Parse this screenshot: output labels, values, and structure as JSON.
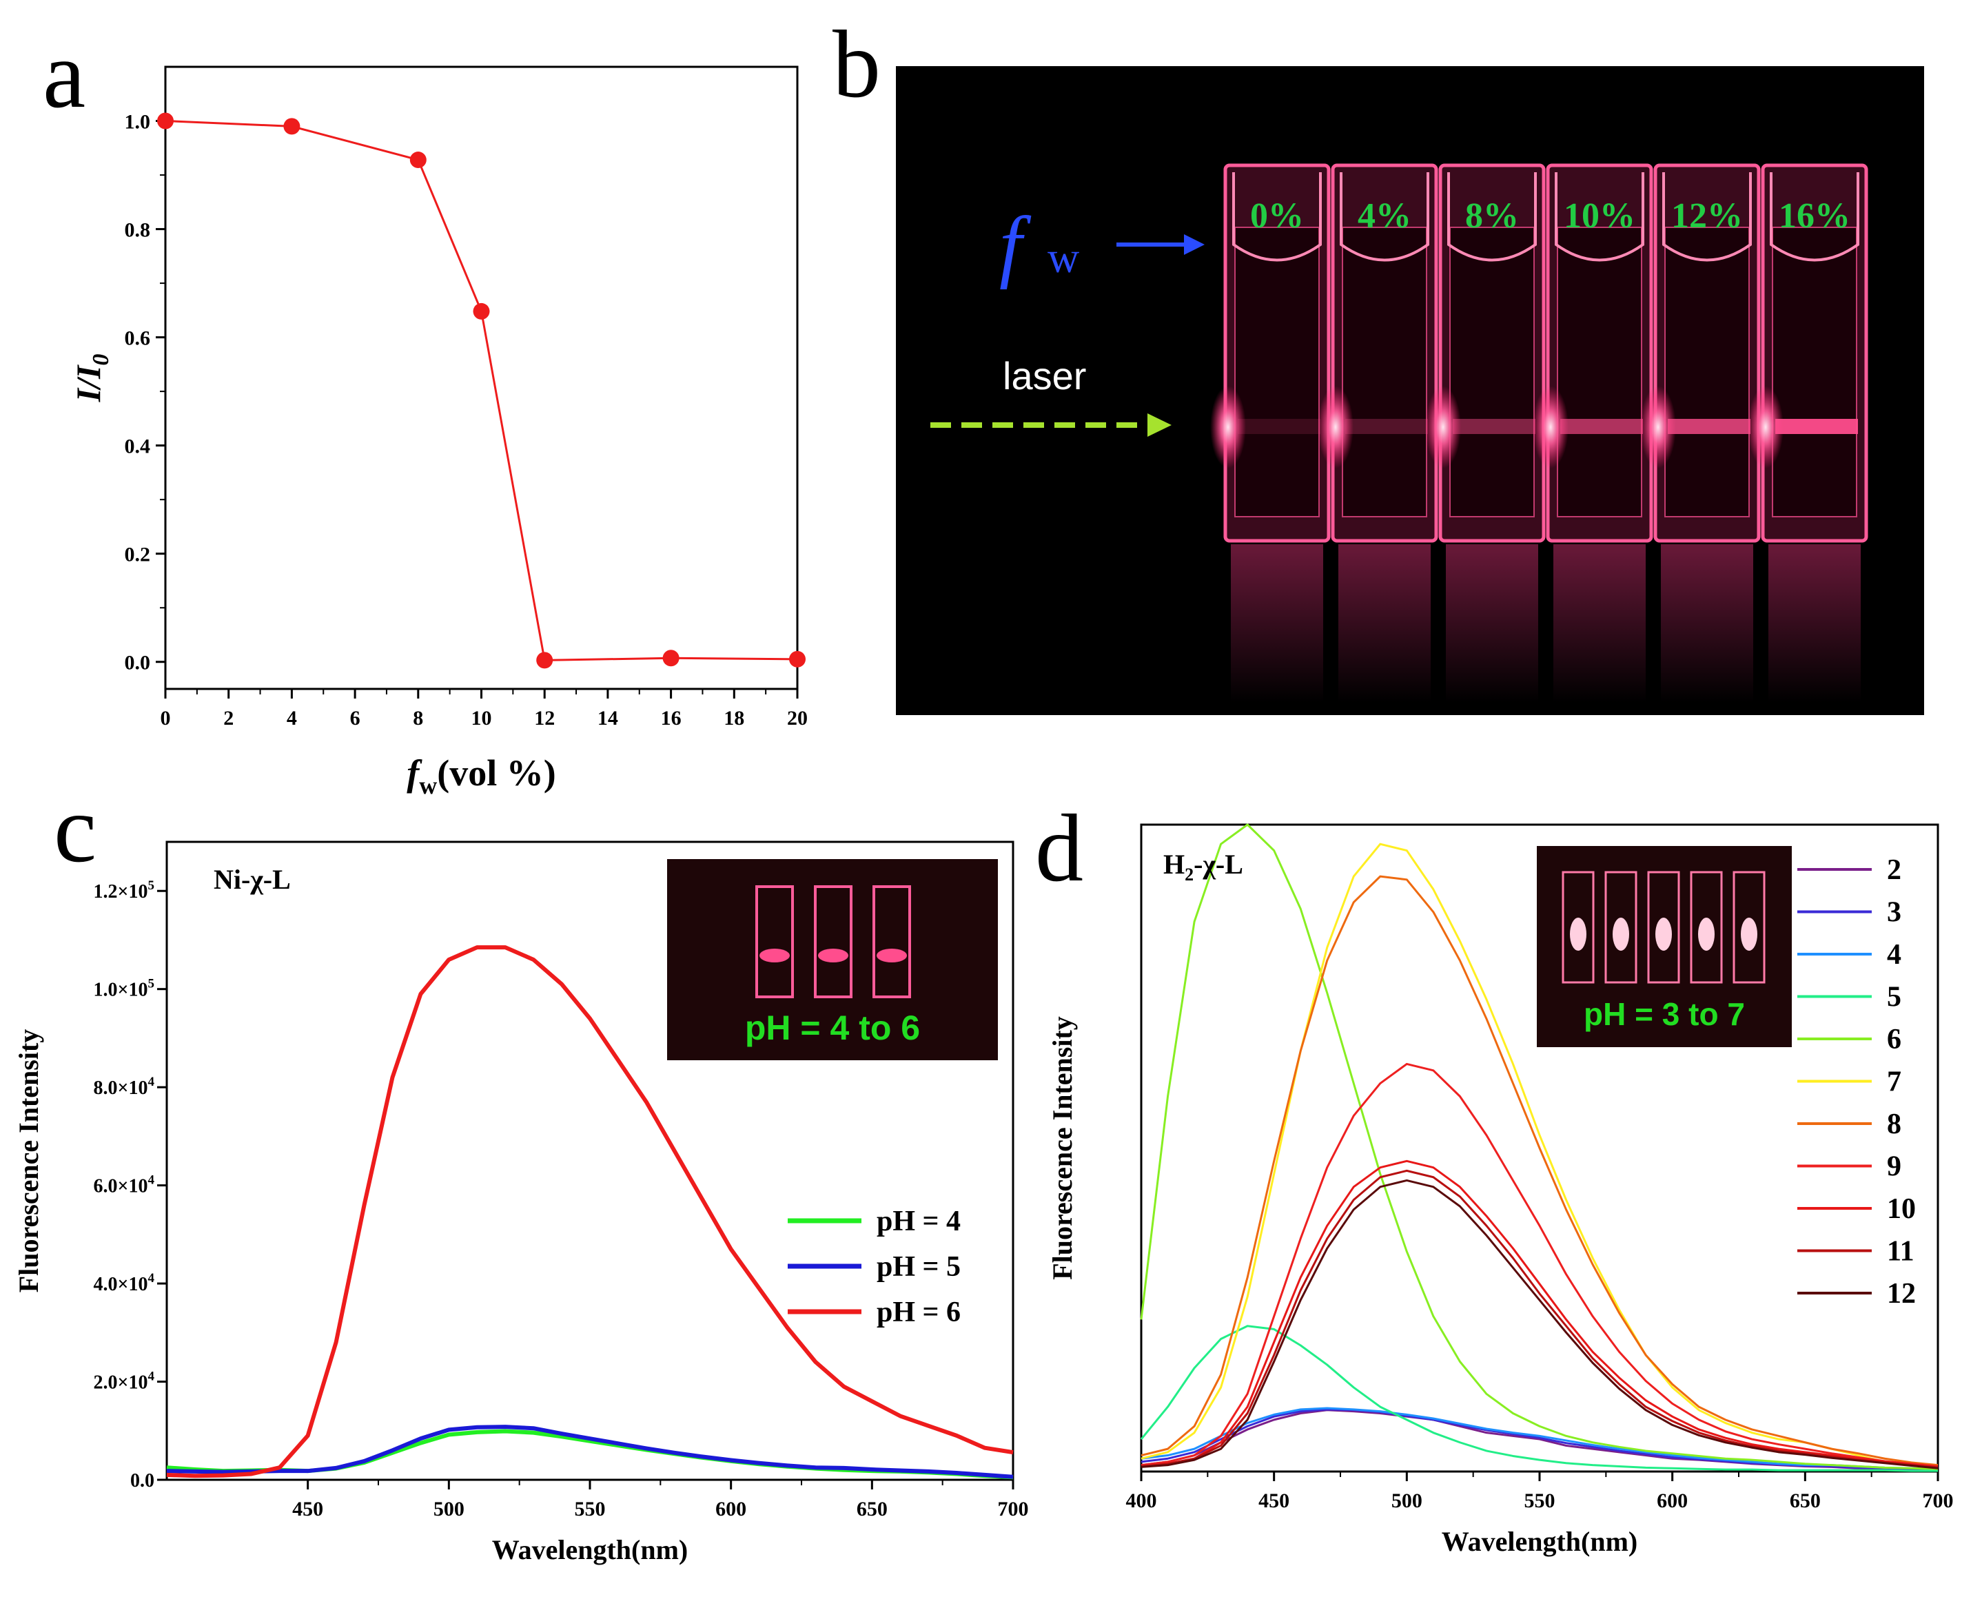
{
  "panels": {
    "a": "a",
    "b": "b",
    "c": "c",
    "d": "d"
  },
  "chart_data": [
    {
      "panel": "a",
      "type": "line",
      "xlabel_main": "f",
      "xlabel_sub": "w",
      "xlabel_rest": "(vol %)",
      "ylabel": "I/I",
      "ylabel_sub": "0",
      "xlim": [
        0,
        20
      ],
      "ylim": [
        -0.05,
        1.1
      ],
      "xticks": [
        0,
        2,
        4,
        6,
        8,
        10,
        12,
        14,
        16,
        18,
        20
      ],
      "yticks": [
        0.0,
        0.2,
        0.4,
        0.6,
        0.8,
        1.0
      ],
      "x": [
        0,
        4,
        8,
        10,
        12,
        16,
        20
      ],
      "y": [
        1.0,
        0.99,
        0.928,
        0.648,
        0.003,
        0.007,
        0.005
      ],
      "color": "#ee1c1c"
    },
    {
      "panel": "c",
      "type": "line",
      "sample_label": "Ni-χ-L",
      "xlabel": "Wavelength(nm)",
      "ylabel": "Fluorescence Intensity",
      "xlim": [
        400,
        700
      ],
      "ylim": [
        0,
        130000
      ],
      "xticks": [
        450,
        500,
        550,
        600,
        650,
        700
      ],
      "yticks": [
        0,
        20000,
        40000,
        60000,
        80000,
        100000,
        120000
      ],
      "ytick_labels": [
        {
          "m": "0.0",
          "e": ""
        },
        {
          "m": "2.0×10",
          "e": "4"
        },
        {
          "m": "4.0×10",
          "e": "4"
        },
        {
          "m": "6.0×10",
          "e": "4"
        },
        {
          "m": "8.0×10",
          "e": "4"
        },
        {
          "m": "1.0×10",
          "e": "5"
        },
        {
          "m": "1.2×10",
          "e": "5"
        }
      ],
      "x": [
        400,
        410,
        420,
        430,
        440,
        450,
        460,
        470,
        480,
        490,
        500,
        510,
        520,
        530,
        540,
        550,
        560,
        570,
        580,
        590,
        600,
        610,
        620,
        630,
        640,
        650,
        660,
        670,
        680,
        690,
        700
      ],
      "series": [
        {
          "name": "pH = 4",
          "color": "#22ee22",
          "values": [
            2500,
            2100,
            1800,
            1900,
            2000,
            1800,
            2300,
            3500,
            5500,
            7500,
            9200,
            9700,
            9900,
            9600,
            8800,
            7900,
            7000,
            6100,
            5300,
            4500,
            3800,
            3200,
            2700,
            2300,
            2000,
            1800,
            1700,
            1500,
            1200,
            800,
            500
          ]
        },
        {
          "name": "pH = 5",
          "color": "#1a1ad6",
          "values": [
            1800,
            1700,
            1600,
            1700,
            1800,
            1800,
            2400,
            3800,
            6000,
            8400,
            10200,
            10700,
            10800,
            10500,
            9400,
            8400,
            7400,
            6400,
            5500,
            4700,
            4000,
            3400,
            2900,
            2500,
            2400,
            2100,
            1900,
            1700,
            1400,
            1000,
            600
          ]
        },
        {
          "name": "pH = 6",
          "color": "#ee1c1c",
          "values": [
            1000,
            800,
            900,
            1200,
            2500,
            9000,
            28000,
            56000,
            82000,
            99000,
            106000,
            108500,
            108500,
            106000,
            101000,
            94000,
            85500,
            77000,
            67000,
            57000,
            47000,
            39000,
            31000,
            24000,
            19000,
            16000,
            13000,
            11000,
            9000,
            6500,
            5600
          ]
        }
      ],
      "inset_text": "pH = 4 to 6"
    },
    {
      "panel": "d",
      "type": "line",
      "sample_label": "H",
      "sample_sub": "2",
      "sample_rest": "-χ-L",
      "xlabel": "Wavelength(nm)",
      "ylabel": "Fluorescence Intensity",
      "xlim": [
        400,
        700
      ],
      "ylim": [
        0,
        1000
      ],
      "xticks": [
        400,
        450,
        500,
        550,
        600,
        650,
        700
      ],
      "x": [
        400,
        410,
        420,
        430,
        440,
        450,
        460,
        470,
        480,
        490,
        500,
        510,
        520,
        530,
        540,
        550,
        560,
        570,
        580,
        590,
        600,
        610,
        620,
        630,
        640,
        650,
        660,
        670,
        680,
        690,
        700
      ],
      "series": [
        {
          "name": "2",
          "color": "#7a1f8a",
          "values": [
            10,
            15,
            25,
            45,
            65,
            80,
            90,
            95,
            93,
            90,
            85,
            80,
            70,
            60,
            55,
            50,
            40,
            35,
            30,
            25,
            20,
            18,
            15,
            12,
            10,
            8,
            7,
            5,
            4,
            3,
            2
          ]
        },
        {
          "name": "3",
          "color": "#3a2ad6",
          "values": [
            15,
            20,
            30,
            50,
            70,
            85,
            93,
            96,
            95,
            92,
            86,
            80,
            72,
            64,
            58,
            52,
            44,
            38,
            32,
            27,
            22,
            19,
            16,
            13,
            11,
            9,
            8,
            6,
            5,
            4,
            3
          ]
        },
        {
          "name": "4",
          "color": "#1e90ff",
          "values": [
            20,
            25,
            35,
            55,
            75,
            88,
            96,
            98,
            96,
            93,
            88,
            82,
            74,
            66,
            60,
            55,
            48,
            41,
            35,
            30,
            25,
            21,
            18,
            15,
            12,
            10,
            10,
            8,
            6,
            5,
            4
          ]
        },
        {
          "name": "5",
          "color": "#22ee88",
          "values": [
            50,
            100,
            160,
            205,
            225,
            220,
            195,
            165,
            130,
            100,
            80,
            60,
            45,
            32,
            24,
            18,
            13,
            10,
            8,
            6,
            5,
            4,
            3,
            3,
            2,
            2,
            2,
            2,
            2,
            1,
            1
          ]
        },
        {
          "name": "6",
          "color": "#88ee22",
          "values": [
            235,
            580,
            850,
            970,
            1000,
            960,
            870,
            740,
            600,
            460,
            340,
            240,
            170,
            120,
            90,
            70,
            55,
            45,
            38,
            32,
            28,
            24,
            20,
            18,
            15,
            12,
            10,
            8,
            6,
            5,
            4
          ]
        },
        {
          "name": "7",
          "color": "#ffee22",
          "values": [
            20,
            30,
            60,
            130,
            270,
            460,
            650,
            810,
            920,
            970,
            960,
            900,
            820,
            730,
            630,
            520,
            420,
            330,
            250,
            180,
            130,
            95,
            75,
            60,
            50,
            45,
            35,
            25,
            15,
            10,
            5
          ]
        },
        {
          "name": "8",
          "color": "#ee6a10",
          "values": [
            25,
            35,
            70,
            150,
            300,
            480,
            650,
            790,
            880,
            920,
            915,
            865,
            790,
            700,
            600,
            500,
            405,
            320,
            245,
            180,
            135,
            100,
            80,
            65,
            55,
            45,
            35,
            28,
            20,
            14,
            10
          ]
        },
        {
          "name": "9",
          "color": "#ee2020",
          "values": [
            10,
            15,
            25,
            55,
            120,
            240,
            360,
            470,
            550,
            600,
            630,
            620,
            580,
            520,
            450,
            380,
            305,
            240,
            185,
            140,
            105,
            80,
            62,
            50,
            42,
            35,
            28,
            22,
            16,
            12,
            8
          ]
        },
        {
          "name": "10",
          "color": "#e81818",
          "values": [
            8,
            12,
            20,
            45,
            100,
            200,
            300,
            380,
            440,
            470,
            480,
            470,
            440,
            395,
            345,
            290,
            235,
            185,
            145,
            110,
            85,
            65,
            52,
            42,
            35,
            30,
            25,
            20,
            15,
            11,
            7
          ]
        },
        {
          "name": "11",
          "color": "#b81010",
          "values": [
            8,
            12,
            20,
            40,
            90,
            180,
            280,
            360,
            420,
            455,
            465,
            455,
            425,
            380,
            330,
            275,
            225,
            175,
            135,
            100,
            78,
            60,
            48,
            39,
            32,
            28,
            23,
            18,
            14,
            10,
            6
          ]
        },
        {
          "name": "12",
          "color": "#5a0a0a",
          "values": [
            7,
            10,
            18,
            35,
            80,
            170,
            265,
            345,
            405,
            440,
            450,
            440,
            410,
            365,
            315,
            265,
            215,
            168,
            128,
            95,
            72,
            56,
            45,
            37,
            30,
            26,
            21,
            17,
            13,
            9,
            5
          ]
        }
      ],
      "inset_text": "pH = 3 to 7"
    }
  ],
  "photo": {
    "fw_label": "f",
    "fw_sub": "w",
    "laser_label": "laser",
    "cuvettes": [
      "0%",
      "4%",
      "8%",
      "10%",
      "12%",
      "16%"
    ]
  }
}
